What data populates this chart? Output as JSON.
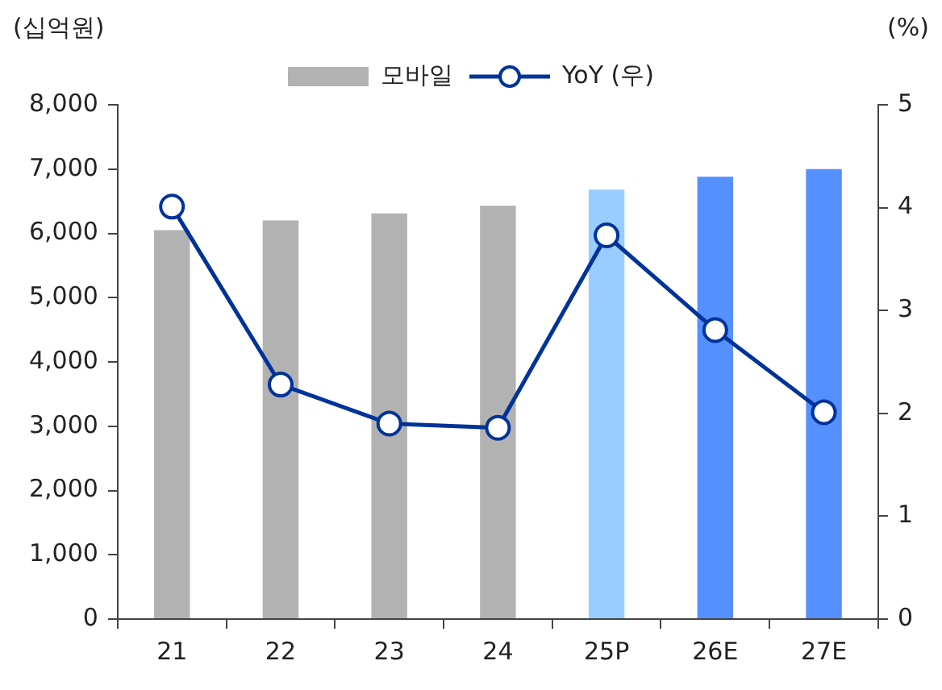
{
  "chart_data": {
    "type": "bar",
    "ylabel": "(십억원)",
    "y2label": "(%)",
    "categories": [
      "21",
      "22",
      "23",
      "24",
      "25P",
      "26E",
      "27E"
    ],
    "series": [
      {
        "name": "모바일",
        "color": "#b2b2b2",
        "colors": [
          "#b2b2b2",
          "#b2b2b2",
          "#b2b2b2",
          "#b2b2b2",
          "#99ccff",
          "#5590ff",
          "#5590ff"
        ],
        "values": [
          6050,
          6200,
          6310,
          6430,
          6680,
          6880,
          7000
        ]
      },
      {
        "name": "YoY (우)",
        "type": "line",
        "axis": "y2",
        "color": "#003399",
        "marker": "circle",
        "values": [
          4.01,
          2.28,
          1.9,
          1.86,
          3.73,
          2.81,
          2.01
        ]
      }
    ],
    "ylim": [
      0,
      8000
    ],
    "yticks": [
      {
        "value": 0,
        "label": "0"
      },
      {
        "value": 1000,
        "label": "1,000"
      },
      {
        "value": 2000,
        "label": "2,000"
      },
      {
        "value": 3000,
        "label": "3,000"
      },
      {
        "value": 4000,
        "label": "4,000"
      },
      {
        "value": 5000,
        "label": "5,000"
      },
      {
        "value": 6000,
        "label": "6,000"
      },
      {
        "value": 7000,
        "label": "7,000"
      },
      {
        "value": 8000,
        "label": "8,000"
      }
    ],
    "y2lim": [
      0,
      5
    ],
    "y2ticks": [
      0,
      1,
      2,
      3,
      4,
      5
    ],
    "grid": false,
    "legend": "top"
  }
}
